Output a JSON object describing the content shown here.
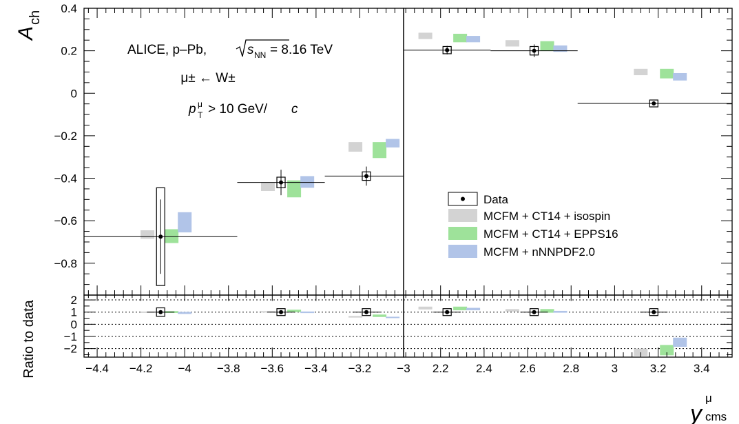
{
  "chart_data": {
    "type": "scatter",
    "labels": {
      "experiment": "ALICE, p–Pb, ",
      "sqrt_s_unit": "= 8.16 TeV",
      "process": "μ± ← W±",
      "cut": "> 10 GeV/"
    },
    "ylabel": "A",
    "ylabel_sub": "ch",
    "ratio_ylabel": "Ratio to data",
    "xlabel": "y",
    "xlabel_sup": "μ",
    "xlabel_sub": "cms",
    "legend": {
      "position": "bottom-right",
      "entries": [
        "Data",
        "MCFM + CT14 + isospin",
        "MCFM + CT14 + EPPS16",
        "MCFM + nNNPDF2.0"
      ]
    },
    "colors": {
      "isospin": "#d3d3d3",
      "epps16": "#9ee29a",
      "nnnpdf": "#b1c4e8",
      "data": "#000000"
    },
    "top_ylim": [
      -0.95,
      0.4
    ],
    "top_yticks": [
      "0.4",
      "0.2",
      "0",
      "−0.2",
      "−0.4",
      "−0.6",
      "−0.8"
    ],
    "top_yticks_values": [
      0.4,
      0.2,
      0,
      -0.2,
      -0.4,
      -0.6,
      -0.8
    ],
    "ratio_ylim": [
      -2.7,
      2.4
    ],
    "ratio_yticks": [
      "2",
      "1",
      "0",
      "−1",
      "−2"
    ],
    "ratio_yticks_values": [
      2,
      1,
      0,
      -1,
      -2
    ],
    "ratio_dotted_lines": [
      2,
      1,
      0,
      -1,
      -2
    ],
    "panels": [
      {
        "name": "backward",
        "xlim": [
          -4.46,
          -3.0
        ],
        "xticks": [
          "−4.4",
          "−4.2",
          "−4",
          "−3.8",
          "−3.6",
          "−3.4",
          "−3.2",
          "−3"
        ],
        "xticks_values": [
          -4.4,
          -4.2,
          -4.0,
          -3.8,
          -3.6,
          -3.4,
          -3.2,
          -3.0
        ],
        "data": [
          {
            "x": -4.11,
            "xmin": -4.46,
            "xmax": -3.76,
            "y": -0.675,
            "stat": 0.175,
            "sys": 0.23,
            "ratio": 1.0,
            "ratio_sys": 0.35
          },
          {
            "x": -3.56,
            "xmin": -3.76,
            "xmax": -3.36,
            "y": -0.42,
            "stat": 0.06,
            "sys": 0.025,
            "ratio": 1.0,
            "ratio_sys": 0.12
          },
          {
            "x": -3.17,
            "xmin": -3.36,
            "xmax": -3.0,
            "y": -0.39,
            "stat": 0.045,
            "sys": 0.02,
            "ratio": 1.0,
            "ratio_sys": 0.1
          }
        ],
        "models": {
          "isospin": [
            {
              "x": -4.17,
              "ymin": -0.685,
              "ymax": -0.645,
              "rmin": 0.95,
              "rmax": 1.05
            },
            {
              "x": -3.62,
              "ymin": -0.46,
              "ymax": -0.42,
              "rmin": 1.0,
              "rmax": 1.08
            },
            {
              "x": -3.22,
              "ymin": -0.275,
              "ymax": -0.23,
              "rmin": 0.55,
              "rmax": 0.68
            }
          ],
          "epps16": [
            {
              "x": -4.06,
              "ymin": -0.705,
              "ymax": -0.64,
              "rmin": 0.93,
              "rmax": 1.08
            },
            {
              "x": -3.5,
              "ymin": -0.49,
              "ymax": -0.41,
              "rmin": 1.0,
              "rmax": 1.2
            },
            {
              "x": -3.11,
              "ymin": -0.305,
              "ymax": -0.23,
              "rmin": 0.6,
              "rmax": 0.8
            }
          ],
          "nnnpdf": [
            {
              "x": -4.0,
              "ymin": -0.655,
              "ymax": -0.56,
              "rmin": 0.85,
              "rmax": 1.02
            },
            {
              "x": -3.44,
              "ymin": -0.445,
              "ymax": -0.39,
              "rmin": 0.92,
              "rmax": 1.05
            },
            {
              "x": -3.05,
              "ymin": -0.255,
              "ymax": -0.215,
              "rmin": 0.52,
              "rmax": 0.62
            }
          ]
        }
      },
      {
        "name": "forward",
        "xlim": [
          2.03,
          3.54
        ],
        "xticks": [
          "2.2",
          "2.4",
          "2.6",
          "2.8",
          "3",
          "3.2",
          "3.4"
        ],
        "xticks_values": [
          2.2,
          2.4,
          2.6,
          2.8,
          3.0,
          3.2,
          3.4
        ],
        "data": [
          {
            "x": 2.23,
            "xmin": 2.03,
            "xmax": 2.43,
            "y": 0.203,
            "stat": 0.02,
            "sys": 0.017,
            "ratio": 1.0,
            "ratio_sys": 0.12
          },
          {
            "x": 2.63,
            "xmin": 2.43,
            "xmax": 2.83,
            "y": 0.2,
            "stat": 0.03,
            "sys": 0.02,
            "ratio": 1.0,
            "ratio_sys": 0.12
          },
          {
            "x": 3.18,
            "xmin": 2.83,
            "xmax": 3.54,
            "y": -0.048,
            "stat": 0.01,
            "sys": 0.008,
            "ratio": 1.0,
            "ratio_sys": 0.28
          }
        ],
        "models": {
          "isospin": [
            {
              "x": 2.13,
              "ymin": 0.255,
              "ymax": 0.285,
              "rmin": 1.22,
              "rmax": 1.45
            },
            {
              "x": 2.53,
              "ymin": 0.22,
              "ymax": 0.25,
              "rmin": 1.05,
              "rmax": 1.25
            },
            {
              "x": 3.12,
              "ymin": 0.085,
              "ymax": 0.115,
              "rmin": -2.6,
              "rmax": -2.0
            }
          ],
          "epps16": [
            {
              "x": 2.29,
              "ymin": 0.24,
              "ymax": 0.28,
              "rmin": 1.15,
              "rmax": 1.45
            },
            {
              "x": 2.69,
              "ymin": 0.2,
              "ymax": 0.245,
              "rmin": 0.95,
              "rmax": 1.25
            },
            {
              "x": 3.24,
              "ymin": 0.07,
              "ymax": 0.115,
              "rmin": -2.55,
              "rmax": -1.7
            }
          ],
          "nnnpdf": [
            {
              "x": 2.35,
              "ymin": 0.24,
              "ymax": 0.27,
              "rmin": 1.15,
              "rmax": 1.35
            },
            {
              "x": 2.75,
              "ymin": 0.195,
              "ymax": 0.225,
              "rmin": 0.95,
              "rmax": 1.1
            },
            {
              "x": 3.3,
              "ymin": 0.06,
              "ymax": 0.095,
              "rmin": -1.85,
              "rmax": -1.1
            }
          ]
        }
      }
    ]
  }
}
